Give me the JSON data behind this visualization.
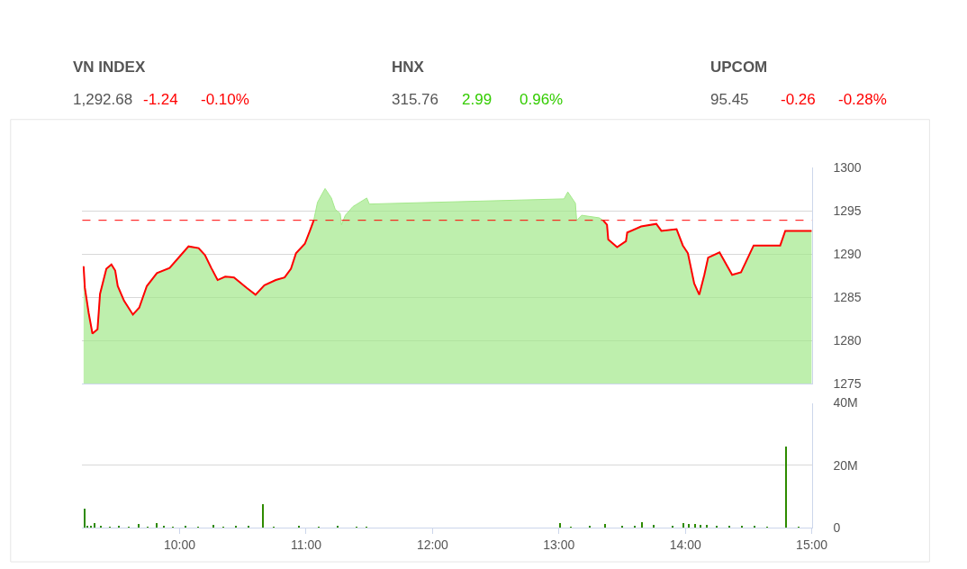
{
  "chart_data": [
    {
      "type": "other",
      "categories": [
        "VN INDEX",
        "HNX",
        "UPCOM"
      ],
      "series": [
        {
          "values": [
            1292.68,
            315.76,
            95.45
          ],
          "value_labels": [
            "1,292.68",
            "315.76",
            "95.45"
          ],
          "color": "#555555"
        },
        {
          "values": [
            -1.24,
            2.99,
            -0.26
          ],
          "value_labels": [
            "-1.24",
            "2.99",
            "-0.26"
          ],
          "colors": [
            "#ff0000",
            "#33cc00",
            "#ff0000"
          ]
        },
        {
          "values": [
            -0.1,
            0.96,
            -0.28
          ],
          "value_labels": [
            "-0.10%",
            "0.96%",
            "-0.28%"
          ],
          "colors": [
            "#ff0000",
            "#33cc00",
            "#ff0000"
          ]
        }
      ]
    },
    {
      "type": "area",
      "xlim": [
        9.23,
        15.0
      ],
      "ylim": [
        1275,
        1300
      ],
      "yticks": [
        1275,
        1280,
        1285,
        1290,
        1295,
        1300
      ],
      "grid": "y",
      "tick_labels": "y",
      "ref_lines": [
        {
          "axis": "y",
          "value": 1293.92,
          "color": "#ff0000",
          "line_style": "dashed"
        }
      ],
      "series": [
        {
          "type": "area",
          "color": "#a3e88a",
          "x": [
            9.24,
            9.25,
            9.28,
            9.31,
            9.35,
            9.36,
            9.37,
            9.42,
            9.46,
            9.49,
            9.51,
            9.56,
            9.63,
            9.68,
            9.74,
            9.82,
            9.92,
            10.01,
            10.07,
            10.15,
            10.2,
            10.25,
            10.3,
            10.36,
            10.43,
            10.53,
            10.6,
            10.67,
            10.76,
            10.83,
            10.88,
            10.92,
            10.99,
            11.03,
            11.06,
            11.09,
            11.15,
            11.2,
            11.23,
            11.27,
            11.28,
            11.31,
            11.37,
            11.48,
            11.5,
            13.04,
            13.07,
            13.13,
            13.14,
            13.18,
            13.32,
            13.35,
            13.38,
            13.39,
            13.46,
            13.53,
            13.54,
            13.65,
            13.77,
            13.81,
            13.93,
            13.98,
            14.02,
            14.07,
            14.11,
            14.15,
            14.18,
            14.27,
            14.37,
            14.44,
            14.54,
            14.75,
            14.79,
            15.0
          ],
          "values": [
            1288.6,
            1286.1,
            1283.2,
            1280.8,
            1281.3,
            1283.3,
            1285.4,
            1288.3,
            1288.8,
            1288.1,
            1286.3,
            1284.6,
            1283.0,
            1283.8,
            1286.3,
            1287.8,
            1288.4,
            1289.9,
            1290.9,
            1290.7,
            1289.9,
            1288.4,
            1287.0,
            1287.4,
            1287.3,
            1286.1,
            1285.3,
            1286.4,
            1287.0,
            1287.3,
            1288.3,
            1290.1,
            1291.2,
            1292.7,
            1293.9,
            1296.0,
            1297.6,
            1296.5,
            1295.2,
            1294.7,
            1293.4,
            1294.5,
            1295.5,
            1296.5,
            1295.8,
            1296.4,
            1297.2,
            1295.9,
            1293.9,
            1294.5,
            1294.2,
            1293.9,
            1293.4,
            1291.7,
            1290.8,
            1291.5,
            1292.5,
            1293.2,
            1293.5,
            1292.7,
            1292.9,
            1291.0,
            1290.1,
            1286.6,
            1285.3,
            1287.6,
            1289.6,
            1290.2,
            1287.6,
            1287.9,
            1291.0,
            1291.0,
            1292.7,
            1292.7
          ]
        },
        {
          "type": "line",
          "color": "#ff0000",
          "x": [
            9.24,
            9.25,
            9.28,
            9.31,
            9.35,
            9.36,
            9.37,
            9.42,
            9.46,
            9.49,
            9.51,
            9.56,
            9.63,
            9.68,
            9.74,
            9.82,
            9.92,
            10.01,
            10.07,
            10.15,
            10.2,
            10.25,
            10.3,
            10.36,
            10.43,
            10.53,
            10.6,
            10.67,
            10.76,
            10.83,
            10.88,
            10.92,
            10.99,
            11.03,
            11.06,
            12.0,
            13.35,
            13.38,
            13.39,
            13.46,
            13.53,
            13.54,
            13.65,
            13.77,
            13.81,
            13.93,
            13.98,
            14.02,
            14.07,
            14.11,
            14.15,
            14.18,
            14.27,
            14.37,
            14.44,
            14.54,
            14.75,
            14.79,
            15.0
          ],
          "values": [
            1288.6,
            1286.1,
            1283.2,
            1280.8,
            1281.3,
            1283.3,
            1285.4,
            1288.3,
            1288.8,
            1288.1,
            1286.3,
            1284.6,
            1283.0,
            1283.8,
            1286.3,
            1287.8,
            1288.4,
            1289.9,
            1290.9,
            1290.7,
            1289.9,
            1288.4,
            1287.0,
            1287.4,
            1287.3,
            1286.1,
            1285.3,
            1286.4,
            1287.0,
            1287.3,
            1288.3,
            1290.1,
            1291.2,
            1292.7,
            1293.9,
            null,
            1293.9,
            1293.4,
            1291.7,
            1290.8,
            1291.5,
            1292.5,
            1293.2,
            1293.5,
            1292.7,
            1292.9,
            1291.0,
            1290.1,
            1286.6,
            1285.3,
            1287.6,
            1289.6,
            1290.2,
            1287.6,
            1287.9,
            1291.0,
            1291.0,
            1292.7,
            1292.7
          ]
        }
      ]
    },
    {
      "type": "bar",
      "xlim": [
        9.23,
        15.0
      ],
      "ylim": [
        0,
        40
      ],
      "grid": "y",
      "xticks": [
        {
          "value": 10,
          "label": "10:00"
        },
        {
          "value": 11,
          "label": "11:00"
        },
        {
          "value": 12,
          "label": "12:00"
        },
        {
          "value": 13,
          "label": "13:00"
        },
        {
          "value": 14,
          "label": "14:00"
        },
        {
          "value": 15,
          "label": "15:00"
        }
      ],
      "yticks": [
        0,
        {
          "value": 20,
          "label": "20M"
        },
        {
          "value": 40,
          "label": "40M"
        }
      ],
      "series": [
        {
          "color": "#2e8b00",
          "x": [
            9.25,
            9.27,
            9.3,
            9.33,
            9.38,
            9.45,
            9.52,
            9.6,
            9.68,
            9.75,
            9.82,
            9.88,
            9.95,
            10.05,
            10.15,
            10.27,
            10.35,
            10.45,
            10.55,
            10.66,
            10.75,
            10.95,
            11.1,
            11.25,
            11.4,
            11.48,
            13.01,
            13.1,
            13.25,
            13.37,
            13.5,
            13.6,
            13.66,
            13.75,
            13.9,
            13.99,
            14.03,
            14.08,
            14.12,
            14.17,
            14.25,
            14.35,
            14.45,
            14.55,
            14.65,
            14.8,
            14.9
          ],
          "values": [
            6.2,
            0.8,
            0.6,
            1.5,
            0.7,
            0.5,
            0.6,
            0.5,
            1.2,
            0.5,
            1.5,
            0.8,
            0.5,
            0.6,
            0.5,
            0.9,
            0.5,
            0.6,
            0.7,
            7.6,
            0.5,
            0.8,
            0.5,
            0.8,
            0.4,
            0.4,
            1.5,
            0.5,
            0.6,
            1.4,
            0.8,
            0.6,
            1.9,
            1.0,
            0.6,
            1.5,
            1.2,
            1.3,
            1.1,
            0.9,
            0.7,
            0.6,
            0.7,
            0.6,
            0.4,
            26.2,
            0.3
          ]
        }
      ]
    }
  ]
}
